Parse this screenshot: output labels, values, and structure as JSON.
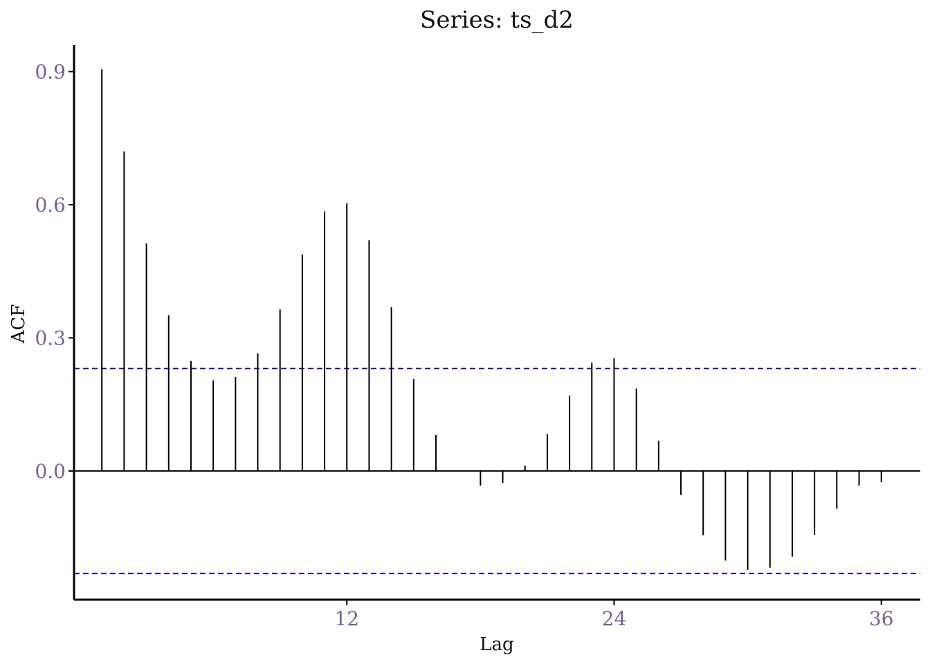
{
  "chart_data": {
    "type": "bar",
    "title": "Series: ts_d2",
    "xlabel": "Lag",
    "ylabel": "ACF",
    "x": [
      1,
      2,
      3,
      4,
      5,
      6,
      7,
      8,
      9,
      10,
      11,
      12,
      13,
      14,
      15,
      16,
      17,
      18,
      19,
      20,
      21,
      22,
      23,
      24,
      25,
      26,
      27,
      28,
      29,
      30,
      31,
      32,
      33,
      34,
      35,
      36
    ],
    "values": [
      0.905,
      0.72,
      0.513,
      0.351,
      0.248,
      0.204,
      0.212,
      0.265,
      0.364,
      0.488,
      0.585,
      0.603,
      0.52,
      0.369,
      0.207,
      0.081,
      0.0,
      -0.033,
      -0.027,
      0.012,
      0.083,
      0.17,
      0.244,
      0.254,
      0.186,
      0.068,
      -0.054,
      -0.145,
      -0.202,
      -0.223,
      -0.218,
      -0.193,
      -0.144,
      -0.085,
      -0.033,
      -0.025
    ],
    "confidence_bound": 0.231,
    "xticks": [
      12,
      24,
      36
    ],
    "yticks": [
      0.0,
      0.3,
      0.6,
      0.9
    ],
    "xtick_labels": [
      "12",
      "24",
      "36"
    ],
    "ytick_labels": [
      "0.0",
      "0.3",
      "0.6",
      "0.9"
    ],
    "xlim": [
      -0.25,
      37.75
    ],
    "ylim": [
      -0.29,
      0.96
    ],
    "grid": false,
    "colors": {
      "bars": "#000000",
      "confidence_lines": "#0000cc",
      "tick_labels": "#7b5e96",
      "axis": "#000000"
    }
  }
}
